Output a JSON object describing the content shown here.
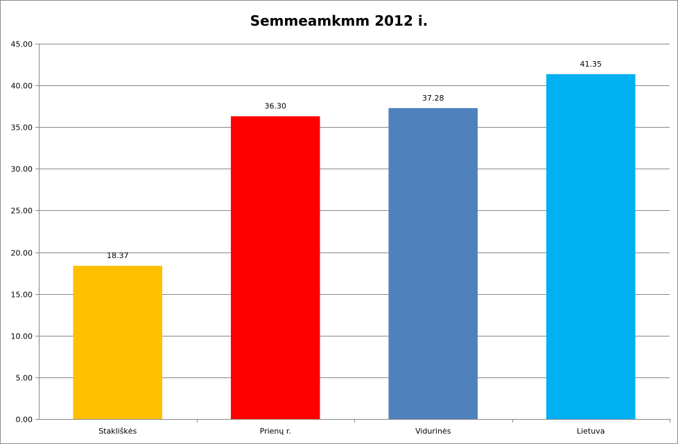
{
  "chart_data": {
    "type": "bar",
    "title": "Semmeamkmm 2012 i.",
    "xlabel": "",
    "ylabel": "",
    "categories": [
      "Stakliškės",
      "Prienų r.",
      "Vidurinės",
      "Lietuva"
    ],
    "values": [
      18.37,
      36.3,
      37.28,
      41.35
    ],
    "data_labels": [
      "18.37",
      "36.30",
      "37.28",
      "41.35"
    ],
    "bar_colors": [
      "#FFC000",
      "#FF0000",
      "#4F81BD",
      "#00B0F0"
    ],
    "ylim": [
      0,
      45
    ],
    "y_ticks": [
      "0.00",
      "5.00",
      "10.00",
      "15.00",
      "20.00",
      "25.00",
      "30.00",
      "35.00",
      "40.00",
      "45.00"
    ],
    "grid": true,
    "legend": "none"
  }
}
